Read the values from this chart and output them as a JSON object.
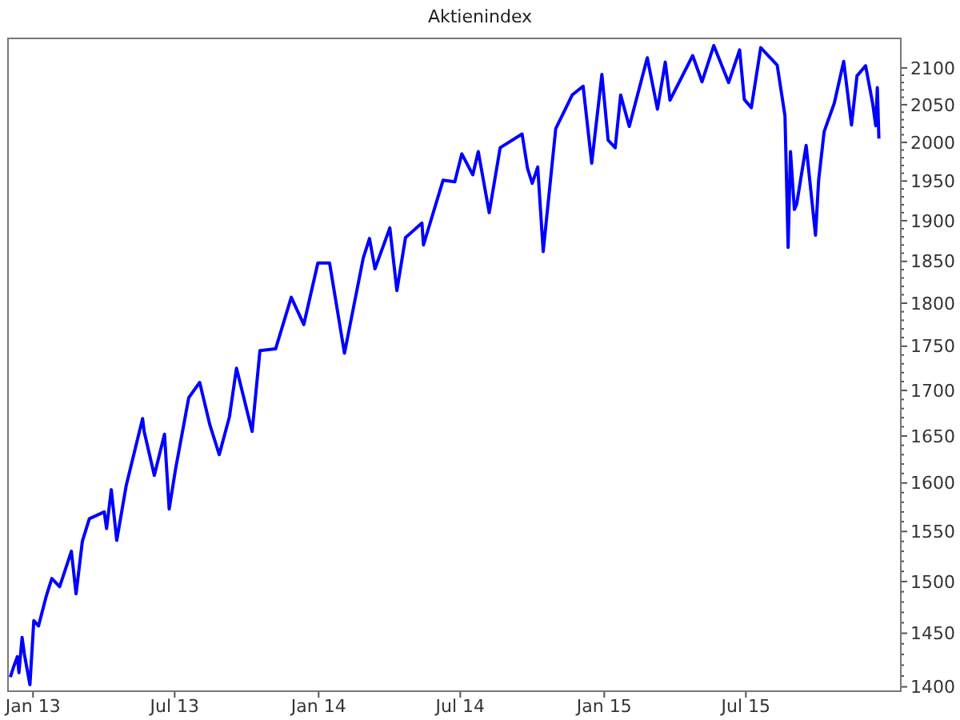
{
  "chart_data": {
    "type": "line",
    "title": "Aktienindex",
    "log": "y",
    "x": [
      "2012-12-03",
      "2012-12-07",
      "2012-12-12",
      "2012-12-14",
      "2012-12-18",
      "2012-12-21",
      "2012-12-28",
      "2013-01-02",
      "2013-01-08",
      "2013-01-18",
      "2013-01-25",
      "2013-02-04",
      "2013-02-19",
      "2013-02-25",
      "2013-03-05",
      "2013-03-14",
      "2013-04-02",
      "2013-04-05",
      "2013-04-11",
      "2013-04-18",
      "2013-04-30",
      "2013-05-21",
      "2013-05-23",
      "2013-06-05",
      "2013-06-18",
      "2013-06-24",
      "2013-07-02",
      "2013-07-19",
      "2013-08-02",
      "2013-08-15",
      "2013-08-27",
      "2013-09-09",
      "2013-09-18",
      "2013-10-08",
      "2013-10-18",
      "2013-11-07",
      "2013-11-27",
      "2013-12-13",
      "2013-12-31",
      "2014-01-15",
      "2014-02-03",
      "2014-02-27",
      "2014-03-07",
      "2014-03-14",
      "2014-04-02",
      "2014-04-11",
      "2014-04-22",
      "2014-05-13",
      "2014-05-15",
      "2014-06-09",
      "2014-06-24",
      "2014-07-03",
      "2014-07-17",
      "2014-07-24",
      "2014-08-07",
      "2014-08-21",
      "2014-09-18",
      "2014-09-25",
      "2014-10-01",
      "2014-10-08",
      "2014-10-15",
      "2014-10-31",
      "2014-11-21",
      "2014-12-05",
      "2014-12-16",
      "2014-12-29",
      "2015-01-06",
      "2015-01-15",
      "2015-01-22",
      "2015-02-02",
      "2015-02-25",
      "2015-03-10",
      "2015-03-20",
      "2015-03-26",
      "2015-04-24",
      "2015-05-06",
      "2015-05-21",
      "2015-06-09",
      "2015-06-23",
      "2015-06-29",
      "2015-07-08",
      "2015-07-20",
      "2015-08-10",
      "2015-08-20",
      "2015-08-24",
      "2015-08-27",
      "2015-09-01",
      "2015-09-04",
      "2015-09-16",
      "2015-09-28",
      "2015-10-02",
      "2015-10-09",
      "2015-10-22",
      "2015-11-03",
      "2015-11-13",
      "2015-11-20",
      "2015-12-01",
      "2015-12-10",
      "2015-12-14",
      "2015-12-16",
      "2015-12-18"
    ],
    "series": [
      {
        "color": "#0000ff",
        "values": [
          1409,
          1418,
          1428,
          1413,
          1446,
          1430,
          1402,
          1462,
          1457,
          1486,
          1503,
          1495,
          1530,
          1488,
          1540,
          1563,
          1570,
          1553,
          1593,
          1541,
          1597,
          1669,
          1655,
          1608,
          1652,
          1573,
          1614,
          1692,
          1709,
          1662,
          1630,
          1671,
          1725,
          1655,
          1745,
          1747,
          1807,
          1775,
          1848,
          1848,
          1742,
          1854,
          1878,
          1841,
          1891,
          1815,
          1879,
          1897,
          1870,
          1951,
          1949,
          1985,
          1958,
          1988,
          1910,
          1993,
          2011,
          1966,
          1947,
          1968,
          1862,
          2018,
          2063,
          2075,
          1973,
          2091,
          2003,
          1993,
          2063,
          2021,
          2114,
          2044,
          2108,
          2056,
          2117,
          2081,
          2131,
          2080,
          2125,
          2057,
          2046,
          2128,
          2104,
          2035,
          1867,
          1988,
          1914,
          1921,
          1996,
          1882,
          1951,
          2014,
          2052,
          2109,
          2023,
          2089,
          2103,
          2052,
          2022,
          2073,
          2005
        ]
      }
    ],
    "xlim": [
      "2012-11-30",
      "2016-01-15"
    ],
    "xticks": [
      {
        "value": "2013-01-01",
        "label": "Jan 13"
      },
      {
        "value": "2013-07-01",
        "label": "Jul 13"
      },
      {
        "value": "2014-01-01",
        "label": "Jan 14"
      },
      {
        "value": "2014-07-01",
        "label": "Jul 14"
      },
      {
        "value": "2015-01-01",
        "label": "Jan 15"
      },
      {
        "value": "2015-07-01",
        "label": "Jul 15"
      }
    ],
    "ylim": [
      1396,
      2141
    ],
    "yticks": [
      1400,
      {
        "value": 1410,
        "label": null
      },
      {
        "value": 1420,
        "label": null
      },
      {
        "value": 1430,
        "label": null
      },
      {
        "value": 1440,
        "label": null
      },
      1450,
      {
        "value": 1460,
        "label": null
      },
      {
        "value": 1470,
        "label": null
      },
      {
        "value": 1480,
        "label": null
      },
      {
        "value": 1490,
        "label": null
      },
      1500,
      {
        "value": 1510,
        "label": null
      },
      {
        "value": 1520,
        "label": null
      },
      {
        "value": 1530,
        "label": null
      },
      {
        "value": 1540,
        "label": null
      },
      1550,
      {
        "value": 1560,
        "label": null
      },
      {
        "value": 1570,
        "label": null
      },
      {
        "value": 1580,
        "label": null
      },
      {
        "value": 1590,
        "label": null
      },
      1600,
      {
        "value": 1610,
        "label": null
      },
      {
        "value": 1620,
        "label": null
      },
      {
        "value": 1630,
        "label": null
      },
      {
        "value": 1640,
        "label": null
      },
      1650,
      {
        "value": 1660,
        "label": null
      },
      {
        "value": 1670,
        "label": null
      },
      {
        "value": 1680,
        "label": null
      },
      {
        "value": 1690,
        "label": null
      },
      1700,
      {
        "value": 1710,
        "label": null
      },
      {
        "value": 1720,
        "label": null
      },
      {
        "value": 1730,
        "label": null
      },
      {
        "value": 1740,
        "label": null
      },
      1750,
      {
        "value": 1760,
        "label": null
      },
      {
        "value": 1770,
        "label": null
      },
      {
        "value": 1780,
        "label": null
      },
      {
        "value": 1790,
        "label": null
      },
      1800,
      {
        "value": 1810,
        "label": null
      },
      {
        "value": 1820,
        "label": null
      },
      {
        "value": 1830,
        "label": null
      },
      {
        "value": 1840,
        "label": null
      },
      1850,
      {
        "value": 1860,
        "label": null
      },
      {
        "value": 1870,
        "label": null
      },
      {
        "value": 1880,
        "label": null
      },
      {
        "value": 1890,
        "label": null
      },
      1900,
      {
        "value": 1910,
        "label": null
      },
      {
        "value": 1920,
        "label": null
      },
      {
        "value": 1930,
        "label": null
      },
      {
        "value": 1940,
        "label": null
      },
      1950,
      {
        "value": 1960,
        "label": null
      },
      {
        "value": 1970,
        "label": null
      },
      {
        "value": 1980,
        "label": null
      },
      {
        "value": 1990,
        "label": null
      },
      2000,
      {
        "value": 2010,
        "label": null
      },
      {
        "value": 2020,
        "label": null
      },
      {
        "value": 2030,
        "label": null
      },
      {
        "value": 2040,
        "label": null
      },
      2050,
      {
        "value": 2060,
        "label": null
      },
      {
        "value": 2070,
        "label": null
      },
      {
        "value": 2080,
        "label": null
      },
      {
        "value": 2090,
        "label": null
      },
      2100
    ]
  }
}
